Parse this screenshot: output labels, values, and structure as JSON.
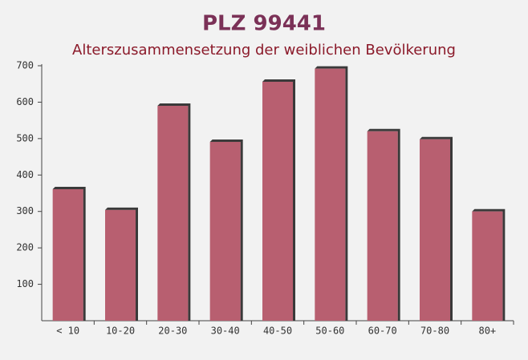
{
  "chart_data": {
    "type": "bar",
    "title": "PLZ 99441",
    "subtitle": "Alterszusammensetzung der weiblichen Bevölkerung",
    "categories": [
      "< 10",
      "10-20",
      "20-30",
      "30-40",
      "40-50",
      "50-60",
      "60-70",
      "70-80",
      "80+"
    ],
    "values": [
      361,
      304,
      590,
      491,
      656,
      692,
      520,
      498,
      300
    ],
    "color": "#b85f70",
    "ylim": [
      0,
      700
    ],
    "yticks": [
      100,
      200,
      300,
      400,
      500,
      600,
      700
    ]
  }
}
